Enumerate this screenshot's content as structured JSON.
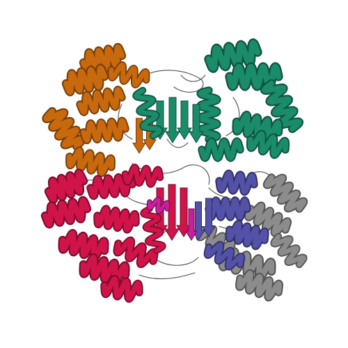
{
  "image": {
    "subject": "protein-ribbon-structure",
    "background_color": "#ffffff",
    "chains": [
      {
        "name": "chain-orange",
        "color": "#c8690e"
      },
      {
        "name": "chain-teal",
        "color": "#1a8c6a"
      },
      {
        "name": "chain-crimson",
        "color": "#d0144a"
      },
      {
        "name": "chain-blue",
        "color": "#5451a8"
      },
      {
        "name": "chain-gray",
        "color": "#8c8c8c"
      },
      {
        "name": "chain-magenta",
        "color": "#c81f9a"
      }
    ],
    "thin_coil_color": "#4d4d4d"
  }
}
